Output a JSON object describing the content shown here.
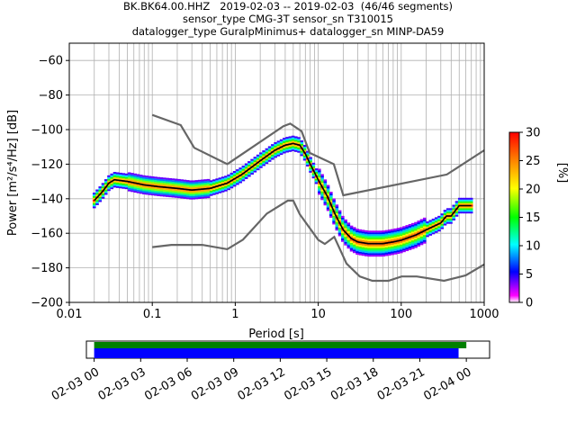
{
  "titles": [
    "BK.BK64.00.HHZ   2019-02-03 -- 2019-02-03  (46/46 segments)",
    "sensor_type CMG-3T sensor_sn T310015",
    "datalogger_type GuralpMinimus+ datalogger_sn MINP-DA59"
  ],
  "chart_data": {
    "type": "heatmap",
    "xlabel": "Period [s]",
    "ylabel": "Power [m²/s⁴/Hz] [dB]",
    "x_scale": "log",
    "xlim": [
      0.01,
      1000
    ],
    "ylim": [
      -200,
      -50
    ],
    "x_ticks": [
      0.01,
      0.1,
      1,
      10,
      100,
      1000
    ],
    "x_tick_labels": [
      "0.01",
      "0.1",
      "1",
      "10",
      "100",
      "1000"
    ],
    "y_ticks": [
      -200,
      -180,
      -160,
      -140,
      -120,
      -100,
      -80,
      -60
    ],
    "y_tick_labels": [
      "−200",
      "−180",
      "−160",
      "−140",
      "−120",
      "−100",
      "−80",
      "−60"
    ],
    "grid": true,
    "colorbar": {
      "label": "[%]",
      "range": [
        0,
        30
      ],
      "ticks": [
        0,
        5,
        10,
        15,
        20,
        25,
        30
      ],
      "tick_labels": [
        "0",
        "5",
        "10",
        "15",
        "20",
        "25",
        "30"
      ]
    },
    "series": [
      {
        "name": "NHNM",
        "color": "#666666",
        "x": [
          0.1,
          0.22,
          0.32,
          0.8,
          3.8,
          4.6,
          6.3,
          7.9,
          15.4,
          20,
          354.8,
          1000
        ],
        "y": [
          -91.5,
          -97.4,
          -110.5,
          -120,
          -98,
          -96.5,
          -101,
          -113.5,
          -120,
          -138,
          -126,
          -112
        ]
      },
      {
        "name": "NLNM",
        "color": "#666666",
        "x": [
          0.1,
          0.17,
          0.4,
          0.8,
          1.24,
          2.4,
          4.3,
          5,
          6,
          10,
          12,
          15.6,
          21.9,
          31.6,
          45,
          70,
          101,
          154,
          328,
          600,
          1000
        ],
        "y": [
          -168,
          -166.7,
          -166.7,
          -169.2,
          -163.7,
          -148.6,
          -141.1,
          -141.1,
          -149,
          -163.8,
          -166.2,
          -162.1,
          -177.5,
          -185,
          -187.5,
          -187.5,
          -185,
          -185,
          -187.5,
          -184.4,
          -178
        ]
      },
      {
        "name": "mode",
        "color": "#000000",
        "x": [
          0.02,
          0.025,
          0.03,
          0.035,
          0.05,
          0.08,
          0.12,
          0.2,
          0.3,
          0.5,
          0.8,
          1.2,
          2,
          3,
          4,
          5,
          6,
          7,
          8,
          10,
          13,
          16,
          20,
          25,
          30,
          40,
          60,
          80,
          100,
          150,
          200,
          300,
          350,
          400,
          500,
          700
        ],
        "y": [
          -141,
          -136,
          -131,
          -129,
          -130,
          -132,
          -133,
          -134,
          -135,
          -134,
          -131,
          -126,
          -118,
          -112,
          -109,
          -108,
          -109,
          -114,
          -120,
          -129,
          -139,
          -149,
          -158,
          -163,
          -165,
          -166,
          -166,
          -165,
          -164,
          -161,
          -158,
          -154,
          -150,
          -150,
          -144,
          -144
        ]
      }
    ],
    "time_coverage": {
      "ticks": [
        "02-03 00",
        "02-03 03",
        "02-03 06",
        "02-03 09",
        "02-03 12",
        "02-03 15",
        "02-03 18",
        "02-03 21",
        "02-04 00"
      ],
      "range_hours": [
        -0.5,
        25.5
      ],
      "data_start_hour": 0,
      "data_end_hour": 23.5,
      "gaps": [],
      "data_color": "#0000ff",
      "coverage_color": "#008000"
    }
  }
}
